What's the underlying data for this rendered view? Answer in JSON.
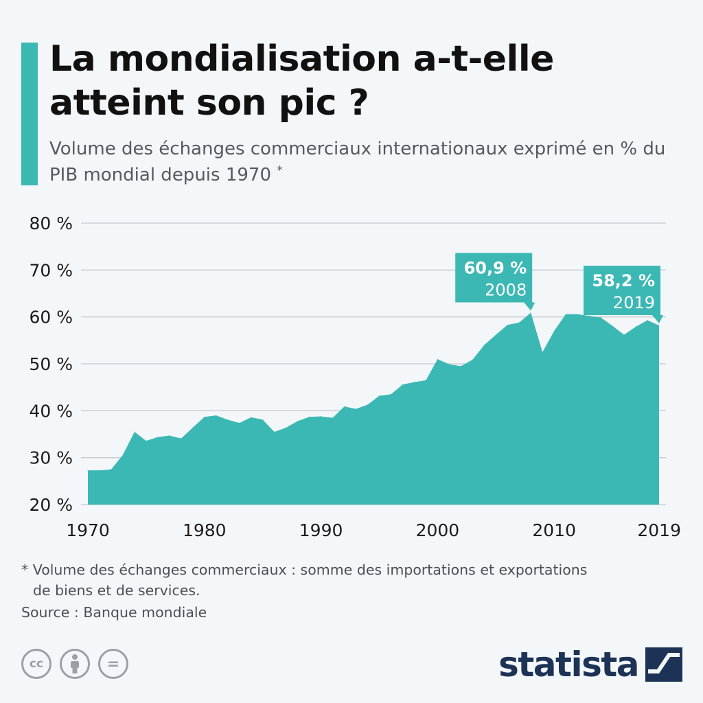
{
  "header": {
    "title": "La mondialisation a-t-elle atteint son pic ?",
    "subtitle": "Volume des échanges commerciaux internationaux exprimé en % du PIB mondial depuis 1970",
    "subtitle_mark": "*"
  },
  "chart_data": {
    "type": "area",
    "title": "La mondialisation a-t-elle atteint son pic ?",
    "ylabel": "",
    "xlabel": "",
    "ylim": [
      20,
      80
    ],
    "y_ticks": [
      "20 %",
      "30 %",
      "40 %",
      "50 %",
      "60 %",
      "70 %",
      "80 %"
    ],
    "y_tick_values": [
      20,
      30,
      40,
      50,
      60,
      70,
      80
    ],
    "x_ticks": [
      "1970",
      "1980",
      "1990",
      "2000",
      "2010",
      "2019"
    ],
    "x_tick_values": [
      1970,
      1980,
      1990,
      2000,
      2010,
      2019
    ],
    "grid": true,
    "color": "#3cb8b4",
    "x": [
      1970,
      1971,
      1972,
      1973,
      1974,
      1975,
      1976,
      1977,
      1978,
      1979,
      1980,
      1981,
      1982,
      1983,
      1984,
      1985,
      1986,
      1987,
      1988,
      1989,
      1990,
      1991,
      1992,
      1993,
      1994,
      1995,
      1996,
      1997,
      1998,
      1999,
      2000,
      2001,
      2002,
      2003,
      2004,
      2005,
      2006,
      2007,
      2008,
      2009,
      2010,
      2011,
      2012,
      2013,
      2014,
      2015,
      2016,
      2017,
      2018,
      2019
    ],
    "values": [
      27.3,
      27.3,
      27.5,
      30.6,
      35.5,
      33.6,
      34.4,
      34.7,
      34.1,
      36.4,
      38.7,
      39.0,
      38.1,
      37.4,
      38.6,
      38.1,
      35.5,
      36.4,
      37.8,
      38.7,
      38.8,
      38.5,
      40.9,
      40.4,
      41.3,
      43.2,
      43.5,
      45.6,
      46.1,
      46.5,
      51.0,
      49.9,
      49.5,
      50.9,
      54.0,
      56.2,
      58.3,
      58.8,
      60.9,
      52.5,
      57.0,
      60.6,
      60.6,
      60.2,
      59.9,
      58.1,
      56.2,
      57.9,
      59.3,
      58.2
    ],
    "annotations": [
      {
        "value": "60,9 %",
        "year": "2008",
        "x": 2008,
        "y": 60.9
      },
      {
        "value": "58,2 %",
        "year": "2019",
        "x": 2019,
        "y": 58.2
      }
    ]
  },
  "footer": {
    "footnote_line1": "* Volume des échanges commerciaux : somme des importations et exportations",
    "footnote_line2": "de biens et de services.",
    "source": "Source : Banque mondiale",
    "license_icons": [
      "cc-icon",
      "attribution-icon",
      "no-derivatives-icon"
    ],
    "license_labels": [
      "cc",
      "",
      "="
    ],
    "brand": "statista"
  }
}
